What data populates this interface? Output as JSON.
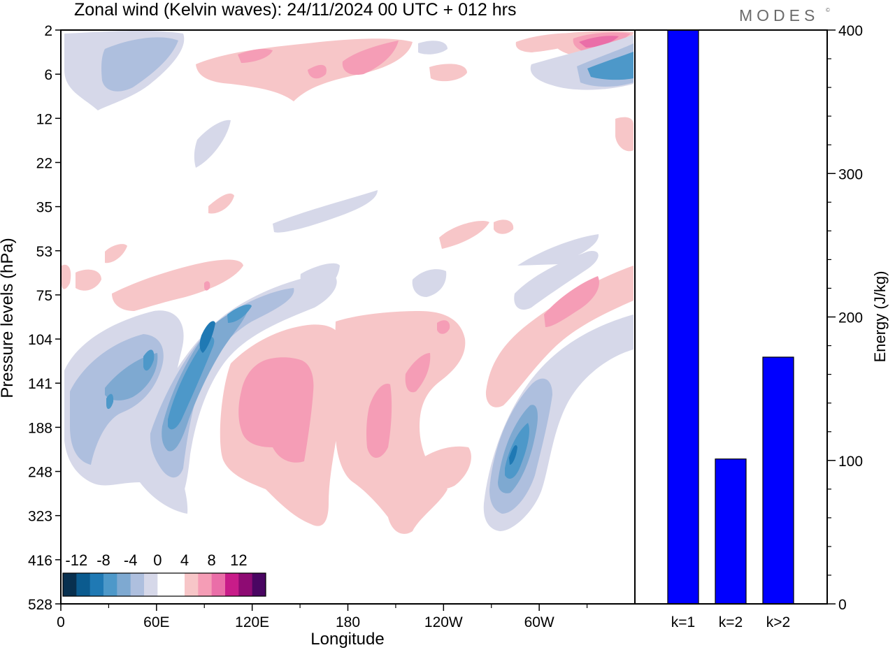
{
  "header": {
    "title": "Zonal wind (Kelvin waves):  24/11/2024  00 UTC  + 012 hrs",
    "brand": "MODES",
    "brand_mark": "©"
  },
  "chart_data": [
    {
      "type": "heatmap",
      "xlabel": "Longitude",
      "ylabel": "Pressure levels (hPa)",
      "x_ticks": [
        "0",
        "60E",
        "120E",
        "180",
        "120W",
        "60W"
      ],
      "x_tick_degrees": [
        0,
        60,
        120,
        180,
        240,
        300
      ],
      "xlim": [
        0,
        360
      ],
      "y_ticks": [
        "2",
        "6",
        "12",
        "22",
        "35",
        "53",
        "75",
        "104",
        "141",
        "188",
        "248",
        "323",
        "416",
        "528"
      ],
      "y_scale": "categorical pressure levels (top 2 hPa, bottom 528 hPa)",
      "colorbar": {
        "labels": [
          "-12",
          "-8",
          "-4",
          "0",
          "4",
          "8",
          "12"
        ],
        "colors": [
          "#08304f",
          "#0b5b8f",
          "#1f79b4",
          "#4d98c9",
          "#7ea9d1",
          "#aebfde",
          "#d6d8e9",
          "#ffffff",
          "#ffffff",
          "#f7c6c8",
          "#f59db6",
          "#ea6ea8",
          "#c81c89",
          "#8e0b73",
          "#4a0662"
        ]
      }
    },
    {
      "type": "bar",
      "categories": [
        "k=1",
        "k=2",
        "k>2"
      ],
      "values": [
        400,
        101,
        172
      ],
      "ylabel": "Energy (J/kg)",
      "ylim": [
        0,
        400
      ],
      "y_ticks": [
        "0",
        "100",
        "200",
        "300",
        "400"
      ],
      "bar_color": "#0000ff"
    }
  ]
}
